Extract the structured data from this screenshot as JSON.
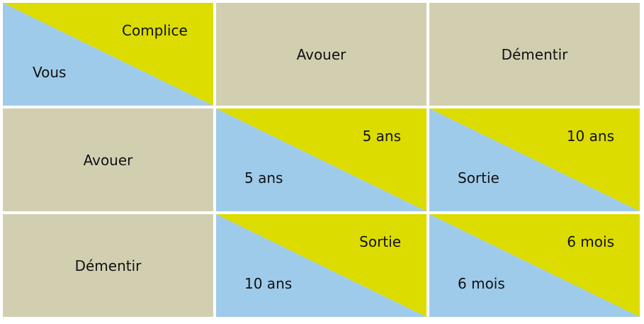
{
  "colors": {
    "header": "#d2cfb1",
    "blue": "#9ecbea",
    "yellow": "#dcdc00",
    "divider": "#ffffff"
  },
  "corner": {
    "column_player": "Complice",
    "row_player": "Vous"
  },
  "columns": [
    "Avouer",
    "Démentir"
  ],
  "rows": [
    {
      "label": "Avouer",
      "cells": [
        {
          "vous": "5 ans",
          "complice": "5 ans"
        },
        {
          "vous": "Sortie",
          "complice": "10 ans"
        }
      ]
    },
    {
      "label": "Démentir",
      "cells": [
        {
          "vous": "10 ans",
          "complice": "Sortie"
        },
        {
          "vous": "6 mois",
          "complice": "6 mois"
        }
      ]
    }
  ]
}
